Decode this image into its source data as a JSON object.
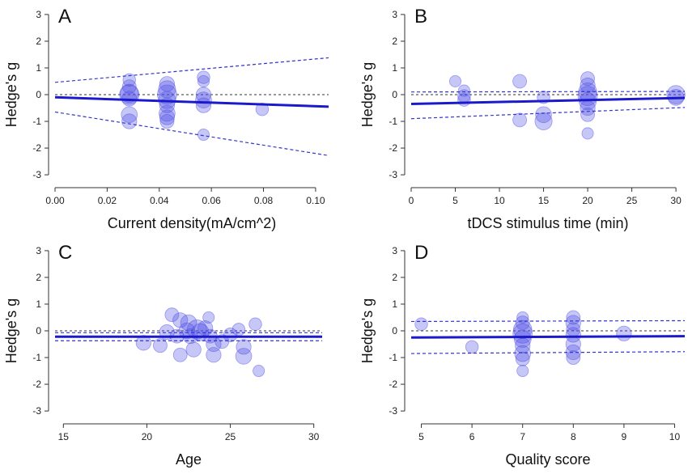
{
  "colors": {
    "fit": "#1a1acc",
    "ci": "#3333cc",
    "bubble": "#4d4de6",
    "zero": "#333333"
  },
  "chart_data": [
    {
      "type": "scatter",
      "panel_label": "A",
      "xlabel": "Current density(mA/cm^2)",
      "ylabel": "Hedge's g",
      "xlim": [
        0.0,
        0.105
      ],
      "ylim": [
        -3.3,
        3.3
      ],
      "xticks": [
        0.0,
        0.02,
        0.04,
        0.06,
        0.08,
        0.1
      ],
      "xtick_labels": [
        "0.00",
        "0.02",
        "0.04",
        "0.06",
        "0.08",
        "0.10"
      ],
      "yticks": [
        -3,
        -2,
        -1,
        0,
        1,
        2,
        3
      ],
      "fit": {
        "x": [
          0.0,
          0.105
        ],
        "y": [
          -0.1,
          -0.45
        ]
      },
      "ci_upper": {
        "x": [
          0.0,
          0.105
        ],
        "y": [
          0.46,
          1.38
        ]
      },
      "ci_lower": {
        "x": [
          0.0,
          0.105
        ],
        "y": [
          -0.65,
          -2.28
        ]
      },
      "points": [
        {
          "x": 0.0285,
          "y": 0.55,
          "w": 0.4
        },
        {
          "x": 0.0285,
          "y": 0.3,
          "w": 0.5
        },
        {
          "x": 0.0285,
          "y": 0.05,
          "w": 0.9
        },
        {
          "x": 0.0285,
          "y": 0.0,
          "w": 1.0
        },
        {
          "x": 0.0285,
          "y": -0.15,
          "w": 0.6
        },
        {
          "x": 0.0285,
          "y": -0.75,
          "w": 0.7
        },
        {
          "x": 0.0285,
          "y": -1.0,
          "w": 0.6
        },
        {
          "x": 0.043,
          "y": 0.4,
          "w": 0.6
        },
        {
          "x": 0.043,
          "y": 0.2,
          "w": 0.8
        },
        {
          "x": 0.043,
          "y": 0.0,
          "w": 1.0
        },
        {
          "x": 0.043,
          "y": -0.2,
          "w": 0.8
        },
        {
          "x": 0.043,
          "y": -0.4,
          "w": 0.6
        },
        {
          "x": 0.043,
          "y": -0.7,
          "w": 0.7
        },
        {
          "x": 0.043,
          "y": -0.85,
          "w": 0.6
        },
        {
          "x": 0.043,
          "y": -1.0,
          "w": 0.5
        },
        {
          "x": 0.057,
          "y": 0.65,
          "w": 0.4
        },
        {
          "x": 0.057,
          "y": 0.5,
          "w": 0.3
        },
        {
          "x": 0.057,
          "y": 0.0,
          "w": 0.6
        },
        {
          "x": 0.057,
          "y": -0.2,
          "w": 0.7
        },
        {
          "x": 0.057,
          "y": -0.4,
          "w": 0.6
        },
        {
          "x": 0.057,
          "y": -1.5,
          "w": 0.3
        },
        {
          "x": 0.0795,
          "y": -0.55,
          "w": 0.4
        }
      ]
    },
    {
      "type": "scatter",
      "panel_label": "B",
      "xlabel": "tDCS stimulus time (min)",
      "ylabel": "Hedge's g",
      "xlim": [
        0,
        31
      ],
      "ylim": [
        -3.3,
        3.3
      ],
      "xticks": [
        0,
        5,
        10,
        15,
        20,
        25,
        30
      ],
      "xtick_labels": [
        "0",
        "5",
        "10",
        "15",
        "20",
        "25",
        "30"
      ],
      "yticks": [
        -3,
        -2,
        -1,
        0,
        1,
        2,
        3
      ],
      "fit": {
        "x": [
          0,
          31
        ],
        "y": [
          -0.35,
          -0.12
        ]
      },
      "ci_upper": {
        "x": [
          0,
          31
        ],
        "y": [
          0.1,
          0.12
        ]
      },
      "ci_lower": {
        "x": [
          0,
          31
        ],
        "y": [
          -0.9,
          -0.48
        ]
      },
      "points": [
        {
          "x": 5,
          "y": 0.5,
          "w": 0.3
        },
        {
          "x": 6,
          "y": 0.15,
          "w": 0.3
        },
        {
          "x": 6,
          "y": -0.05,
          "w": 0.4
        },
        {
          "x": 6,
          "y": -0.2,
          "w": 0.4
        },
        {
          "x": 12.3,
          "y": 0.5,
          "w": 0.5
        },
        {
          "x": 12.3,
          "y": -0.95,
          "w": 0.5
        },
        {
          "x": 15,
          "y": -0.1,
          "w": 0.4
        },
        {
          "x": 15,
          "y": -0.75,
          "w": 0.7
        },
        {
          "x": 15,
          "y": -1.0,
          "w": 0.8
        },
        {
          "x": 20,
          "y": 0.6,
          "w": 0.5
        },
        {
          "x": 20,
          "y": 0.35,
          "w": 0.6
        },
        {
          "x": 20,
          "y": 0.1,
          "w": 0.9
        },
        {
          "x": 20,
          "y": -0.05,
          "w": 1.0
        },
        {
          "x": 20,
          "y": -0.25,
          "w": 0.8
        },
        {
          "x": 20,
          "y": -0.5,
          "w": 0.6
        },
        {
          "x": 20,
          "y": -0.75,
          "w": 0.5
        },
        {
          "x": 20,
          "y": -1.45,
          "w": 0.3
        },
        {
          "x": 30,
          "y": 0.0,
          "w": 0.9
        },
        {
          "x": 30,
          "y": -0.1,
          "w": 0.7
        }
      ]
    },
    {
      "type": "scatter",
      "panel_label": "C",
      "xlabel": "Age",
      "ylabel": "Hedge's g",
      "xlim": [
        14.5,
        30.5
      ],
      "ylim": [
        -3.3,
        3.3
      ],
      "xticks": [
        15,
        20,
        25,
        30
      ],
      "xtick_labels": [
        "15",
        "20",
        "25",
        "30"
      ],
      "yticks": [
        -3,
        -2,
        -1,
        0,
        1,
        2,
        3
      ],
      "fit": {
        "x": [
          14.5,
          30.5
        ],
        "y": [
          -0.22,
          -0.22
        ]
      },
      "ci_upper": {
        "x": [
          14.5,
          30.5
        ],
        "y": [
          -0.07,
          -0.07
        ]
      },
      "ci_lower": {
        "x": [
          14.5,
          30.5
        ],
        "y": [
          -0.37,
          -0.37
        ]
      },
      "points": [
        {
          "x": 19.8,
          "y": -0.45,
          "w": 0.6
        },
        {
          "x": 20.8,
          "y": -0.55,
          "w": 0.5
        },
        {
          "x": 21.2,
          "y": -0.05,
          "w": 0.6
        },
        {
          "x": 21.5,
          "y": 0.6,
          "w": 0.5
        },
        {
          "x": 21.8,
          "y": -0.2,
          "w": 0.5
        },
        {
          "x": 22.0,
          "y": 0.4,
          "w": 0.6
        },
        {
          "x": 22.0,
          "y": -0.9,
          "w": 0.5
        },
        {
          "x": 22.4,
          "y": 0.0,
          "w": 0.7
        },
        {
          "x": 22.5,
          "y": 0.3,
          "w": 0.7
        },
        {
          "x": 22.6,
          "y": -0.2,
          "w": 0.6
        },
        {
          "x": 22.8,
          "y": -0.7,
          "w": 0.6
        },
        {
          "x": 23.0,
          "y": 0.05,
          "w": 1.0
        },
        {
          "x": 23.2,
          "y": -0.05,
          "w": 0.8
        },
        {
          "x": 23.5,
          "y": 0.1,
          "w": 0.6
        },
        {
          "x": 23.7,
          "y": 0.5,
          "w": 0.3
        },
        {
          "x": 23.8,
          "y": -0.2,
          "w": 0.5
        },
        {
          "x": 24.0,
          "y": -0.5,
          "w": 0.6
        },
        {
          "x": 24.0,
          "y": -0.9,
          "w": 0.6
        },
        {
          "x": 24.5,
          "y": -0.4,
          "w": 0.5
        },
        {
          "x": 25.0,
          "y": -0.15,
          "w": 0.5
        },
        {
          "x": 25.5,
          "y": 0.05,
          "w": 0.4
        },
        {
          "x": 25.8,
          "y": -0.6,
          "w": 0.6
        },
        {
          "x": 25.8,
          "y": -0.95,
          "w": 0.7
        },
        {
          "x": 26.5,
          "y": 0.25,
          "w": 0.4
        },
        {
          "x": 26.7,
          "y": -1.5,
          "w": 0.3
        }
      ]
    },
    {
      "type": "scatter",
      "panel_label": "D",
      "xlabel": "Quality score",
      "ylabel": "Hedge's g",
      "xlim": [
        4.8,
        10.2
      ],
      "ylim": [
        -3.3,
        3.3
      ],
      "xticks": [
        5,
        6,
        7,
        8,
        9,
        10
      ],
      "xtick_labels": [
        "5",
        "6",
        "7",
        "8",
        "9",
        "10"
      ],
      "yticks": [
        -3,
        -2,
        -1,
        0,
        1,
        2,
        3
      ],
      "fit": {
        "x": [
          4.8,
          10.2
        ],
        "y": [
          -0.25,
          -0.2
        ]
      },
      "ci_upper": {
        "x": [
          4.8,
          10.2
        ],
        "y": [
          0.35,
          0.38
        ]
      },
      "ci_lower": {
        "x": [
          4.8,
          10.2
        ],
        "y": [
          -0.85,
          -0.78
        ]
      },
      "points": [
        {
          "x": 5,
          "y": 0.25,
          "w": 0.4
        },
        {
          "x": 6,
          "y": -0.6,
          "w": 0.4
        },
        {
          "x": 7,
          "y": 0.5,
          "w": 0.3
        },
        {
          "x": 7,
          "y": 0.3,
          "w": 0.5
        },
        {
          "x": 7,
          "y": 0.05,
          "w": 0.9
        },
        {
          "x": 7,
          "y": -0.1,
          "w": 1.0
        },
        {
          "x": 7,
          "y": -0.3,
          "w": 0.8
        },
        {
          "x": 7,
          "y": -0.55,
          "w": 0.6
        },
        {
          "x": 7,
          "y": -0.85,
          "w": 0.7
        },
        {
          "x": 7,
          "y": -1.05,
          "w": 0.5
        },
        {
          "x": 7,
          "y": -1.5,
          "w": 0.3
        },
        {
          "x": 8,
          "y": 0.5,
          "w": 0.5
        },
        {
          "x": 8,
          "y": 0.3,
          "w": 0.6
        },
        {
          "x": 8,
          "y": 0.05,
          "w": 0.5
        },
        {
          "x": 8,
          "y": -0.15,
          "w": 0.6
        },
        {
          "x": 8,
          "y": -0.5,
          "w": 0.6
        },
        {
          "x": 8,
          "y": -0.8,
          "w": 0.6
        },
        {
          "x": 8,
          "y": -1.0,
          "w": 0.5
        },
        {
          "x": 9,
          "y": -0.1,
          "w": 0.6
        }
      ]
    }
  ]
}
